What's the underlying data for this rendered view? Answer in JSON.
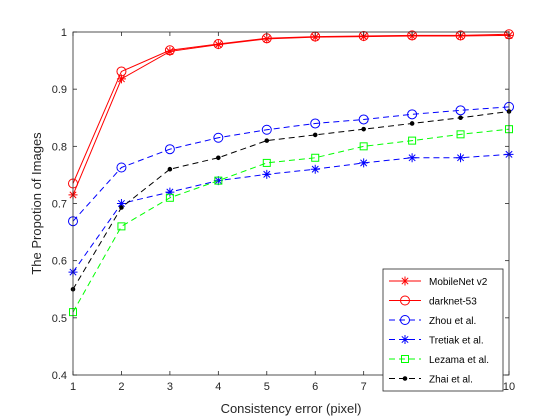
{
  "chart_data": {
    "type": "line",
    "title": "",
    "xlabel": "Consistency error (pixel)",
    "ylabel": "The Propotion of Images",
    "xlim": [
      1,
      10
    ],
    "ylim": [
      0.4,
      1.0
    ],
    "xticks": [
      "1",
      "2",
      "3",
      "4",
      "5",
      "6",
      "7",
      "8",
      "9",
      "10"
    ],
    "yticks": [
      "0.4",
      "0.5",
      "0.6",
      "0.7",
      "0.8",
      "0.9",
      "1"
    ],
    "grid": false,
    "legend_position": "bottom-right",
    "x": [
      1,
      2,
      3,
      4,
      5,
      6,
      7,
      8,
      9,
      10
    ],
    "series": [
      {
        "name": "MobileNet v2",
        "color": "#ff0000",
        "marker": "asterisk",
        "line": "solid",
        "values": [
          0.715,
          0.918,
          0.966,
          0.978,
          0.988,
          0.991,
          0.992,
          0.993,
          0.993,
          0.994
        ]
      },
      {
        "name": "darknet-53",
        "color": "#ff0000",
        "marker": "circle",
        "line": "solid",
        "values": [
          0.735,
          0.931,
          0.968,
          0.979,
          0.989,
          0.992,
          0.993,
          0.994,
          0.994,
          0.996
        ]
      },
      {
        "name": "Zhou et al.",
        "color": "#0000ff",
        "marker": "circle",
        "line": "dashed",
        "values": [
          0.669,
          0.763,
          0.795,
          0.815,
          0.829,
          0.84,
          0.847,
          0.856,
          0.863,
          0.869
        ]
      },
      {
        "name": "Tretiak et al.",
        "color": "#0000ff",
        "marker": "asterisk",
        "line": "dashed",
        "values": [
          0.58,
          0.7,
          0.72,
          0.74,
          0.751,
          0.76,
          0.771,
          0.78,
          0.78,
          0.786
        ]
      },
      {
        "name": "Lezama et al.",
        "color": "#00ff00",
        "marker": "square",
        "line": "dashed",
        "values": [
          0.51,
          0.66,
          0.71,
          0.74,
          0.771,
          0.78,
          0.8,
          0.81,
          0.821,
          0.83
        ]
      },
      {
        "name": "Zhai et al.",
        "color": "#000000",
        "marker": "dot",
        "line": "dashed",
        "values": [
          0.55,
          0.693,
          0.76,
          0.78,
          0.81,
          0.82,
          0.83,
          0.84,
          0.85,
          0.861
        ]
      }
    ]
  }
}
